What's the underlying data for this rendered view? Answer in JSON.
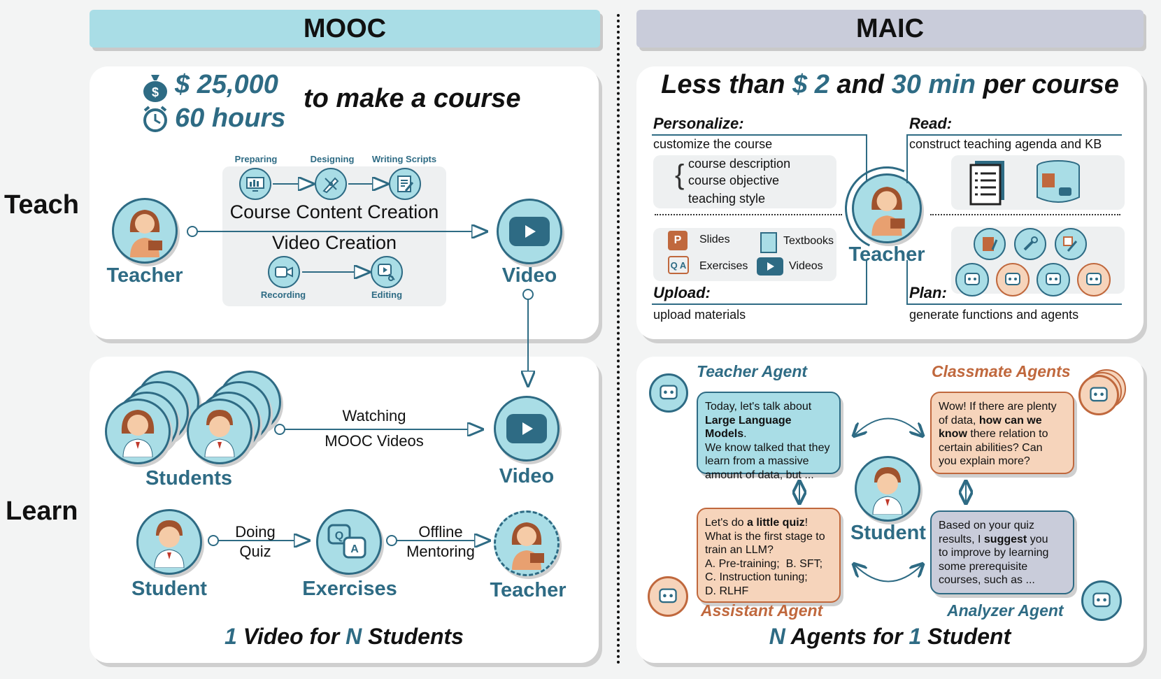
{
  "mooc": {
    "header": "MOOC",
    "cost_amount": "$ 25,000",
    "time_amount": "60 hours",
    "make_course": "to make a course",
    "steps": {
      "preparing": "Preparing",
      "designing": "Designing",
      "writing_scripts": "Writing Scripts",
      "recording": "Recording",
      "editing": "Editing"
    },
    "course_content_creation": "Course Content Creation",
    "video_creation": "Video Creation",
    "teacher_label": "Teacher",
    "video_label": "Video",
    "students_label": "Students",
    "watching_line1": "Watching",
    "watching_line2": "MOOC Videos",
    "student_label": "Student",
    "doing_line1": "Doing",
    "doing_line2": "Quiz",
    "exercises_label": "Exercises",
    "offline_line1": "Offline",
    "offline_line2": "Mentoring",
    "footer_num1": "1",
    "footer_mid": " Video for ",
    "footer_num2": "N",
    "footer_end": " Students"
  },
  "side": {
    "teach": "Teach",
    "learn": "Learn"
  },
  "maic": {
    "header": "MAIC",
    "title_prefix": "Less than ",
    "title_cost": "$ 2",
    "title_and": " and ",
    "title_time": "30 min",
    "title_suffix": " per course",
    "personalize_title": "Personalize:",
    "personalize_desc": "customize the course",
    "personalize_items": [
      "course description",
      "course objective",
      "teaching style"
    ],
    "read_title": "Read:",
    "read_desc": "construct teaching agenda and KB",
    "upload_title": "Upload:",
    "upload_desc": "upload materials",
    "plan_title": "Plan:",
    "plan_desc": "generate functions and agents",
    "materials": {
      "slides": "Slides",
      "textbooks": "Textbooks",
      "exercises": "Exercises",
      "videos": "Videos"
    },
    "teacher_label": "Teacher",
    "teacher_agent": "Teacher Agent",
    "classmate_agents": "Classmate Agents",
    "assistant_agent": "Assistant Agent",
    "analyzer_agent": "Analyzer Agent",
    "student_label": "Student",
    "teacher_bubble": {
      "l1": "Today, let's talk about",
      "l2": "Large Language Models",
      "l2_end": ".",
      "l3": "We know talked that they",
      "l4": "learn from a massive",
      "l5": "amount of data, but ..."
    },
    "classmate_bubble": {
      "l1": "Wow! If there are plenty",
      "l2a": "of data, ",
      "l2b": "how can we",
      "l3a": "know",
      "l3b": " there relation to",
      "l4": "certain abilities? Can",
      "l5": "you explain more?"
    },
    "assistant_bubble": {
      "l1a": "Let's do ",
      "l1b": "a little quiz",
      "l1c": "!",
      "l2": "What is the first stage to",
      "l3": "train an LLM?",
      "l4": "A. Pre-training;  B. SFT;",
      "l5": "C. Instruction tuning;",
      "l6": "D. RLHF"
    },
    "analyzer_bubble": {
      "l1": "Based on your quiz",
      "l2a": "results, I ",
      "l2b": "suggest",
      "l2c": " you",
      "l3": "to improve by learning",
      "l4": "some prerequisite",
      "l5": "courses, such as ..."
    },
    "footer_num1": "N",
    "footer_mid": " Agents for ",
    "footer_num2": "1",
    "footer_end": " Student"
  },
  "colors": {
    "teal": "#2e6b84",
    "light_teal": "#a9dde6",
    "orange": "#c0683d",
    "peach": "#f6d4bb",
    "lavender": "#c9ccda"
  }
}
